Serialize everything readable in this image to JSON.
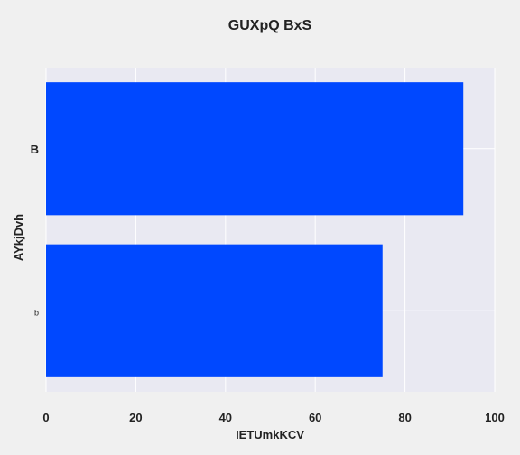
{
  "chart_data": {
    "type": "bar",
    "orientation": "horizontal",
    "title": "GUXpQ BxS",
    "xlabel": "IETUmkKCV",
    "ylabel": "AYkjDvh",
    "categories": [
      "b",
      "B"
    ],
    "values": [
      75,
      93
    ],
    "xlim": [
      0,
      100
    ],
    "xticks": [
      "0",
      "20",
      "40",
      "60",
      "80",
      "100"
    ],
    "grid": true,
    "legend": "none",
    "colors": {
      "bar": "#0048ff",
      "plot_background": "#e9e9f2",
      "figure_background": "#f0f0f0",
      "grid": "#ffffff"
    }
  }
}
